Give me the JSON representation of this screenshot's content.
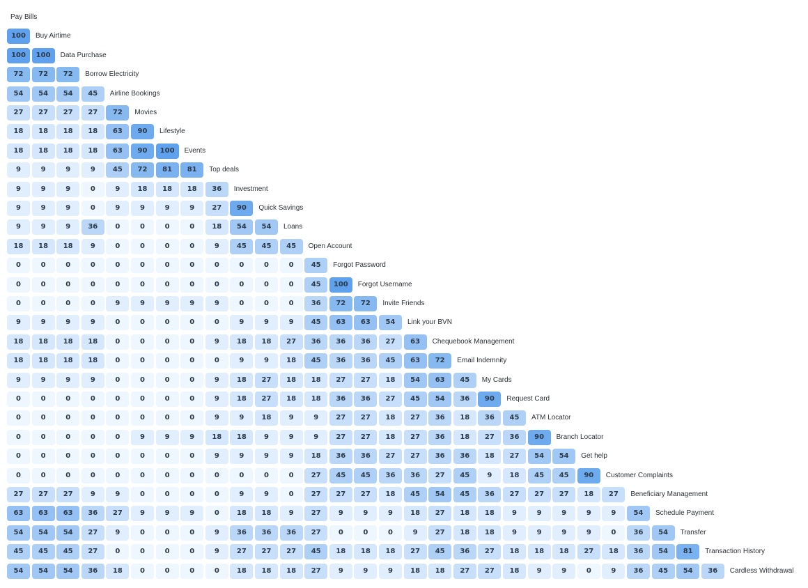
{
  "chart_data": {
    "type": "heatmap",
    "title": "",
    "color_scale": [
      "#eef6ff",
      "#5fa1ec"
    ],
    "value_range": [
      0,
      100
    ],
    "labels": [
      "Pay Bills",
      "Buy Airtime",
      "Data Purchase",
      "Borrow Electricity",
      "Airline Bookings",
      "Movies",
      "Lifestyle",
      "Events",
      "Top deals",
      "Investment",
      "Quick Savings",
      "Loans",
      "Open Account",
      "Forgot Password",
      "Forgot Username",
      "Invite Friends",
      "Link your BVN",
      "Chequebook Management",
      "Email Indemnity",
      "My Cards",
      "Request Card",
      "ATM Locator",
      "Branch Locator",
      "Get help",
      "Customer Complaints",
      "Beneficiary Management",
      "Schedule Payment",
      "Transfer",
      "Transaction History",
      "Cardless Withdrawal"
    ],
    "rows": [
      [],
      [
        100
      ],
      [
        100,
        100
      ],
      [
        72,
        72,
        72
      ],
      [
        54,
        54,
        54,
        45
      ],
      [
        27,
        27,
        27,
        27,
        72
      ],
      [
        18,
        18,
        18,
        18,
        63,
        90
      ],
      [
        18,
        18,
        18,
        18,
        63,
        90,
        100
      ],
      [
        9,
        9,
        9,
        9,
        45,
        72,
        81,
        81
      ],
      [
        9,
        9,
        9,
        0,
        9,
        18,
        18,
        18,
        36
      ],
      [
        9,
        9,
        9,
        0,
        9,
        9,
        9,
        9,
        27,
        90
      ],
      [
        9,
        9,
        9,
        36,
        0,
        0,
        0,
        0,
        18,
        54,
        54
      ],
      [
        18,
        18,
        18,
        9,
        0,
        0,
        0,
        0,
        9,
        45,
        45,
        45
      ],
      [
        0,
        0,
        0,
        0,
        0,
        0,
        0,
        0,
        0,
        0,
        0,
        0,
        45
      ],
      [
        0,
        0,
        0,
        0,
        0,
        0,
        0,
        0,
        0,
        0,
        0,
        0,
        45,
        100
      ],
      [
        0,
        0,
        0,
        0,
        9,
        9,
        9,
        9,
        9,
        0,
        0,
        0,
        36,
        72,
        72
      ],
      [
        9,
        9,
        9,
        9,
        0,
        0,
        0,
        0,
        0,
        9,
        9,
        9,
        45,
        63,
        63,
        54
      ],
      [
        18,
        18,
        18,
        18,
        0,
        0,
        0,
        0,
        9,
        18,
        18,
        27,
        36,
        36,
        36,
        27,
        63
      ],
      [
        18,
        18,
        18,
        18,
        0,
        0,
        0,
        0,
        0,
        9,
        9,
        18,
        45,
        36,
        36,
        45,
        63,
        72
      ],
      [
        9,
        9,
        9,
        9,
        0,
        0,
        0,
        0,
        9,
        18,
        27,
        18,
        18,
        27,
        27,
        18,
        54,
        63,
        45
      ],
      [
        0,
        0,
        0,
        0,
        0,
        0,
        0,
        0,
        9,
        18,
        27,
        18,
        18,
        36,
        36,
        27,
        45,
        54,
        36,
        90
      ],
      [
        0,
        0,
        0,
        0,
        0,
        0,
        0,
        0,
        9,
        9,
        18,
        9,
        9,
        27,
        27,
        18,
        27,
        36,
        18,
        36,
        45
      ],
      [
        0,
        0,
        0,
        0,
        0,
        9,
        9,
        9,
        18,
        18,
        9,
        9,
        9,
        27,
        27,
        18,
        27,
        36,
        18,
        27,
        36,
        90
      ],
      [
        0,
        0,
        0,
        0,
        0,
        0,
        0,
        0,
        9,
        9,
        9,
        9,
        18,
        36,
        36,
        27,
        27,
        36,
        36,
        18,
        27,
        54,
        54
      ],
      [
        0,
        0,
        0,
        0,
        0,
        0,
        0,
        0,
        0,
        0,
        0,
        0,
        27,
        45,
        45,
        36,
        36,
        27,
        45,
        9,
        18,
        45,
        45,
        90
      ],
      [
        27,
        27,
        27,
        9,
        9,
        0,
        0,
        0,
        0,
        9,
        9,
        0,
        27,
        27,
        27,
        18,
        45,
        54,
        45,
        36,
        27,
        27,
        27,
        18,
        27
      ],
      [
        63,
        63,
        63,
        36,
        27,
        9,
        9,
        9,
        0,
        18,
        18,
        9,
        27,
        9,
        9,
        9,
        18,
        27,
        18,
        18,
        9,
        9,
        9,
        9,
        9,
        54
      ],
      [
        54,
        54,
        54,
        27,
        9,
        0,
        0,
        0,
        9,
        36,
        36,
        36,
        27,
        0,
        0,
        0,
        9,
        27,
        18,
        18,
        9,
        9,
        9,
        9,
        0,
        36,
        54
      ],
      [
        45,
        45,
        45,
        27,
        0,
        0,
        0,
        0,
        9,
        27,
        27,
        27,
        45,
        18,
        18,
        18,
        27,
        45,
        36,
        27,
        18,
        18,
        18,
        27,
        18,
        36,
        54,
        81
      ],
      [
        54,
        54,
        54,
        36,
        18,
        0,
        0,
        0,
        0,
        18,
        18,
        18,
        27,
        9,
        9,
        9,
        18,
        18,
        27,
        27,
        18,
        9,
        9,
        0,
        9,
        36,
        45,
        54,
        36
      ]
    ]
  }
}
